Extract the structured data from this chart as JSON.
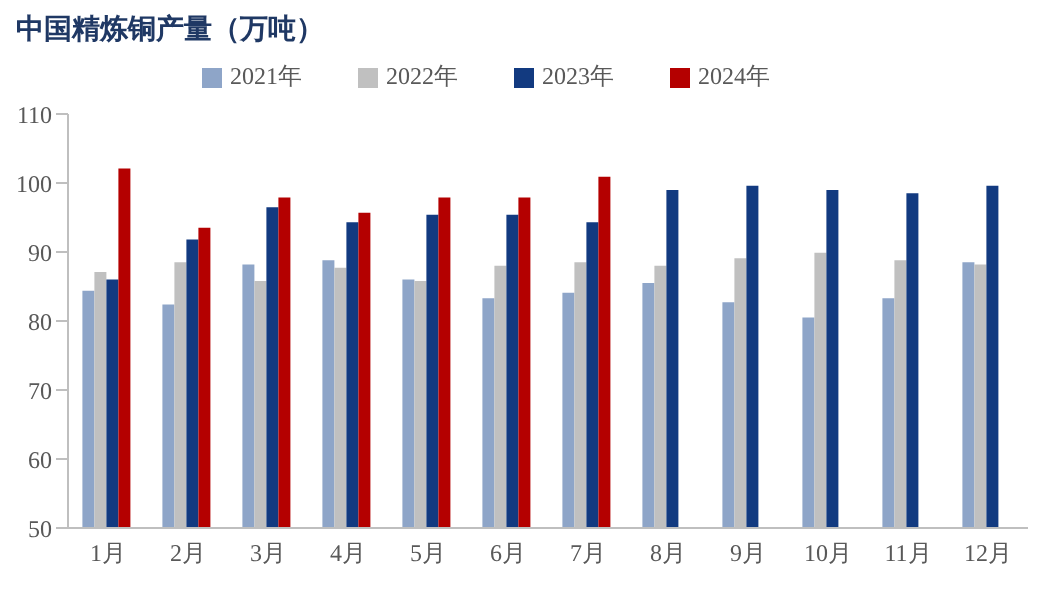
{
  "chart_data": {
    "type": "bar",
    "title": "中国精炼铜产量（万吨）",
    "categories": [
      "1月",
      "2月",
      "3月",
      "4月",
      "5月",
      "6月",
      "7月",
      "8月",
      "9月",
      "10月",
      "11月",
      "12月"
    ],
    "series": [
      {
        "name": "2021年",
        "color": "#8ea5c8",
        "values": [
          84.4,
          82.4,
          88.2,
          88.8,
          86.0,
          83.3,
          84.1,
          85.5,
          82.7,
          80.5,
          83.3,
          88.5
        ]
      },
      {
        "name": "2022年",
        "color": "#c0c0c0",
        "values": [
          87.1,
          88.5,
          85.8,
          87.7,
          85.8,
          88.0,
          88.5,
          88.0,
          89.1,
          89.9,
          88.8,
          88.2
        ]
      },
      {
        "name": "2023年",
        "color": "#123a80",
        "values": [
          86.0,
          91.8,
          96.5,
          94.3,
          95.4,
          95.4,
          94.3,
          99.0,
          99.6,
          99.0,
          98.5,
          99.6
        ]
      },
      {
        "name": "2024年",
        "color": "#b40000",
        "values": [
          102.1,
          93.5,
          97.9,
          95.7,
          97.9,
          97.9,
          100.9,
          null,
          null,
          null,
          null,
          null
        ]
      }
    ],
    "ylim": [
      50,
      110
    ],
    "yticks": [
      50,
      60,
      70,
      80,
      90,
      100,
      110
    ],
    "grid": false,
    "legend": "top"
  }
}
